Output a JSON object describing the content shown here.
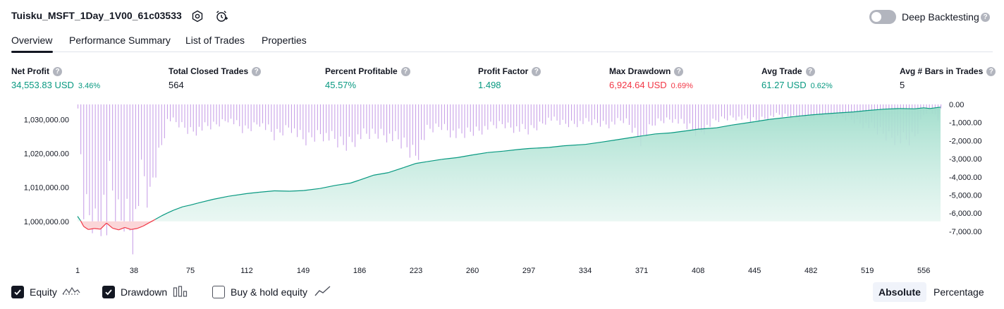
{
  "header": {
    "title": "Tuisku_MSFT_1Day_1V00_61c03533",
    "deep_backtesting_label": "Deep Backtesting",
    "deep_backtesting_enabled": false,
    "help_glyph": "?"
  },
  "tabs": [
    {
      "label": "Overview",
      "active": true
    },
    {
      "label": "Performance Summary",
      "active": false
    },
    {
      "label": "List of Trades",
      "active": false
    },
    {
      "label": "Properties",
      "active": false
    }
  ],
  "metrics": [
    {
      "label": "Net Profit",
      "value": "34,553.83 USD",
      "pct": "3.46%",
      "color": "green"
    },
    {
      "label": "Total Closed Trades",
      "value": "564",
      "pct": "",
      "color": "dark"
    },
    {
      "label": "Percent Profitable",
      "value": "45.57%",
      "pct": "",
      "color": "green"
    },
    {
      "label": "Profit Factor",
      "value": "1.498",
      "pct": "",
      "color": "green"
    },
    {
      "label": "Max Drawdown",
      "value": "6,924.64 USD",
      "pct": "0.69%",
      "color": "red"
    },
    {
      "label": "Avg Trade",
      "value": "61.27 USD",
      "pct": "0.62%",
      "color": "green"
    },
    {
      "label": "Avg # Bars in Trades",
      "value": "5",
      "pct": "",
      "color": "dark"
    }
  ],
  "chart_data": {
    "type": "area",
    "left_axis_ticks": [
      "1,030,000.00",
      "1,020,000.00",
      "1,010,000.00",
      "1,000,000.00"
    ],
    "right_axis_ticks": [
      "0.00",
      "-1,000.00",
      "-2,000.00",
      "-3,000.00",
      "-4,000.00",
      "-5,000.00",
      "-6,000.00",
      "-7,000.00"
    ],
    "x_ticks": [
      "1",
      "38",
      "75",
      "112",
      "149",
      "186",
      "223",
      "260",
      "297",
      "334",
      "371",
      "408",
      "445",
      "482",
      "519",
      "556"
    ],
    "equity_axis_range": [
      996000,
      1034500
    ],
    "drawdown_axis_range": [
      -7200,
      0
    ],
    "x_range": [
      1,
      567
    ],
    "initial_capital": 1000000,
    "equity_series": {
      "x": [
        1,
        3,
        5,
        8,
        12,
        16,
        20,
        24,
        28,
        32,
        36,
        40,
        44,
        48,
        52,
        56,
        60,
        64,
        70,
        75,
        80,
        90,
        100,
        112,
        120,
        130,
        140,
        149,
        160,
        170,
        180,
        186,
        195,
        205,
        215,
        223,
        230,
        240,
        250,
        260,
        270,
        280,
        290,
        297,
        310,
        320,
        334,
        345,
        355,
        365,
        371,
        380,
        390,
        400,
        408,
        420,
        430,
        445,
        455,
        465,
        475,
        482,
        490,
        500,
        510,
        519,
        530,
        540,
        550,
        556,
        560,
        567
      ],
      "y": [
        1001500,
        1000200,
        998500,
        997600,
        997900,
        997700,
        999500,
        998000,
        997500,
        998200,
        997600,
        997900,
        998600,
        999600,
        1000600,
        1001600,
        1002500,
        1003300,
        1004300,
        1004800,
        1005400,
        1006500,
        1007400,
        1008200,
        1008600,
        1009000,
        1008900,
        1009100,
        1009700,
        1010600,
        1011300,
        1012200,
        1013600,
        1014400,
        1015900,
        1017100,
        1017600,
        1018300,
        1018800,
        1019600,
        1020300,
        1020700,
        1021200,
        1021500,
        1021800,
        1022300,
        1022700,
        1023400,
        1024100,
        1024800,
        1025200,
        1025800,
        1026100,
        1026700,
        1027200,
        1027600,
        1028400,
        1029400,
        1030100,
        1030600,
        1031100,
        1031400,
        1031700,
        1032000,
        1032300,
        1032700,
        1033100,
        1033300,
        1033200,
        1033500,
        1033300,
        1033700
      ]
    },
    "drawdown_series": {
      "x": [
        1,
        3,
        5,
        8,
        10,
        12,
        15,
        18,
        20,
        22,
        25,
        28,
        30,
        32,
        35,
        38,
        40,
        42,
        45,
        48,
        50,
        60,
        75,
        90,
        100,
        110,
        120,
        130,
        140,
        149,
        160,
        175,
        186,
        200,
        210,
        223,
        230,
        240,
        250,
        260,
        270,
        280,
        290,
        297,
        310,
        320,
        334,
        350,
        360,
        371,
        380,
        390,
        400,
        408,
        420,
        430,
        445,
        460,
        470,
        482,
        490,
        500,
        510,
        519,
        530,
        535,
        540,
        545,
        550,
        556,
        560,
        565,
        567
      ],
      "y": [
        -300,
        -3100,
        -6000,
        -6400,
        -5900,
        -6900,
        -6300,
        -5600,
        -6800,
        -3900,
        -6000,
        -6700,
        -6500,
        -5800,
        -6800,
        -6900,
        -6000,
        -4000,
        -4300,
        -6000,
        -4200,
        -800,
        -1500,
        -1200,
        -800,
        -1500,
        -1000,
        -1800,
        -1200,
        -2100,
        -1600,
        -2300,
        -1800,
        -1600,
        -2000,
        -2800,
        -1500,
        -1200,
        -1800,
        -1500,
        -1300,
        -1100,
        -1400,
        -1500,
        -800,
        -1100,
        -1000,
        -1100,
        -900,
        -2000,
        -1000,
        -800,
        -1200,
        -1600,
        -900,
        -700,
        -900,
        -600,
        -700,
        -800,
        -600,
        -700,
        -900,
        -1200,
        -1700,
        -1800,
        -2000,
        -2100,
        -1800,
        -500,
        -300,
        -1000,
        -200
      ]
    },
    "grid": false,
    "legend_position": "bottom-left"
  },
  "footer": {
    "legend": [
      {
        "label": "Equity",
        "checked": true,
        "icon": "equity-line-icon"
      },
      {
        "label": "Drawdown",
        "checked": true,
        "icon": "drawdown-bars-icon"
      },
      {
        "label": "Buy & hold equity",
        "checked": false,
        "icon": "buy-hold-line-icon"
      }
    ],
    "mode_buttons": [
      {
        "label": "Absolute",
        "active": true
      },
      {
        "label": "Percentage",
        "active": false
      }
    ]
  },
  "colors": {
    "profit": "#089981",
    "loss": "#f23645",
    "drawdown_bar": "#c9a2e8",
    "equity_fill_top": "#9fddcb",
    "equity_fill_bottom": "#eaf7f3",
    "loss_fill": "#fbd6d8"
  }
}
